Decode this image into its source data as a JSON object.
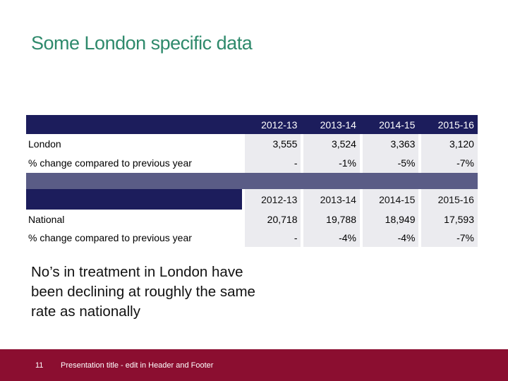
{
  "title": "Some London specific data",
  "tables": [
    {
      "header": [
        "2012-13",
        "2013-14",
        "2014-15",
        "2015-16"
      ],
      "rows": [
        [
          "London",
          "3,555",
          "3,524",
          "3,363",
          "3,120"
        ],
        [
          "% change compared to previous year",
          "-",
          "-1%",
          "-5%",
          "-7%"
        ]
      ]
    },
    {
      "header": [
        "2012-13",
        "2013-14",
        "2014-15",
        "2015-16"
      ],
      "rows": [
        [
          "National",
          "20,718",
          "19,788",
          "18,949",
          "17,593"
        ],
        [
          "% change compared to previous year",
          "-",
          "-4%",
          "-4%",
          "-7%"
        ]
      ]
    }
  ],
  "note": "No’s in treatment in London have been declining at roughly the same rate as nationally",
  "footer": {
    "page": "11",
    "text": "Presentation title - edit in Header and Footer"
  }
}
